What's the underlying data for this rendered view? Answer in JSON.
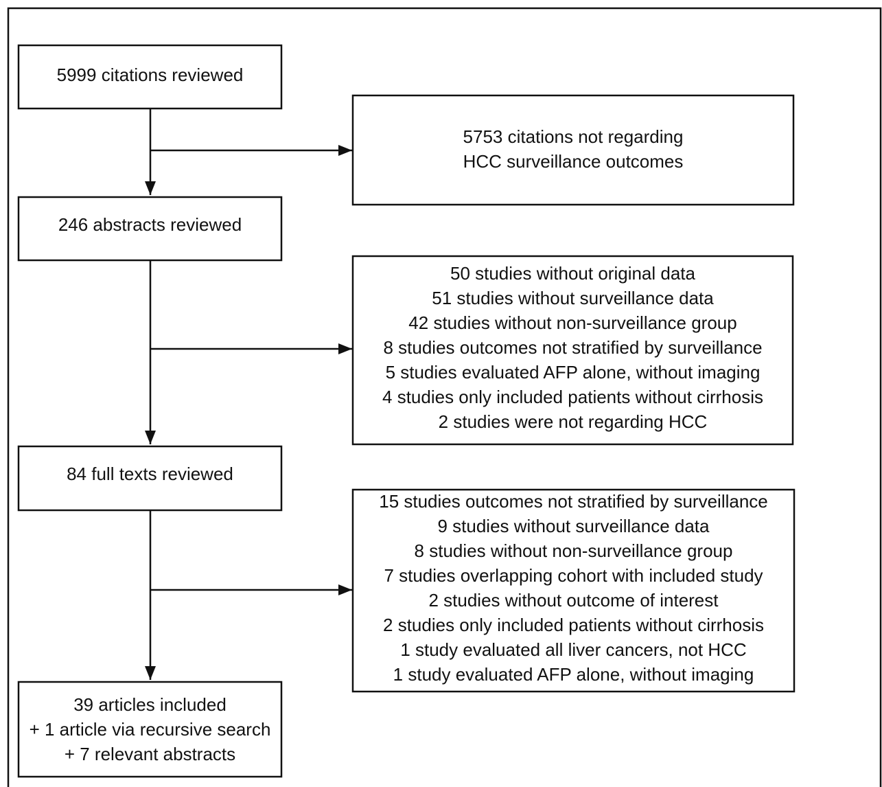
{
  "nodes": [
    {
      "lines": [
        "5999 citations reviewed"
      ]
    },
    {
      "lines": [
        "5753 citations not regarding",
        "HCC surveillance outcomes"
      ]
    },
    {
      "lines": [
        "246 abstracts reviewed"
      ]
    },
    {
      "lines": [
        "50 studies without original data",
        "51 studies without surveillance data",
        "42 studies without non-surveillance group",
        "8 studies outcomes not stratified by surveillance",
        "5 studies evaluated AFP alone, without imaging",
        "4 studies only included patients without cirrhosis",
        "2 studies were not regarding HCC"
      ]
    },
    {
      "lines": [
        "84 full texts reviewed"
      ]
    },
    {
      "lines": [
        "15 studies outcomes not stratified by surveillance",
        "9 studies without surveillance data",
        "8 studies without non-surveillance group",
        "7 studies overlapping cohort with included study",
        "2 studies without outcome of interest",
        "2 studies only included patients without cirrhosis",
        "1 study evaluated all liver cancers, not HCC",
        "1 study evaluated AFP alone, without imaging"
      ]
    },
    {
      "lines": [
        "39 articles included",
        "+ 1 article via recursive search",
        "+ 7 relevant abstracts"
      ]
    }
  ]
}
